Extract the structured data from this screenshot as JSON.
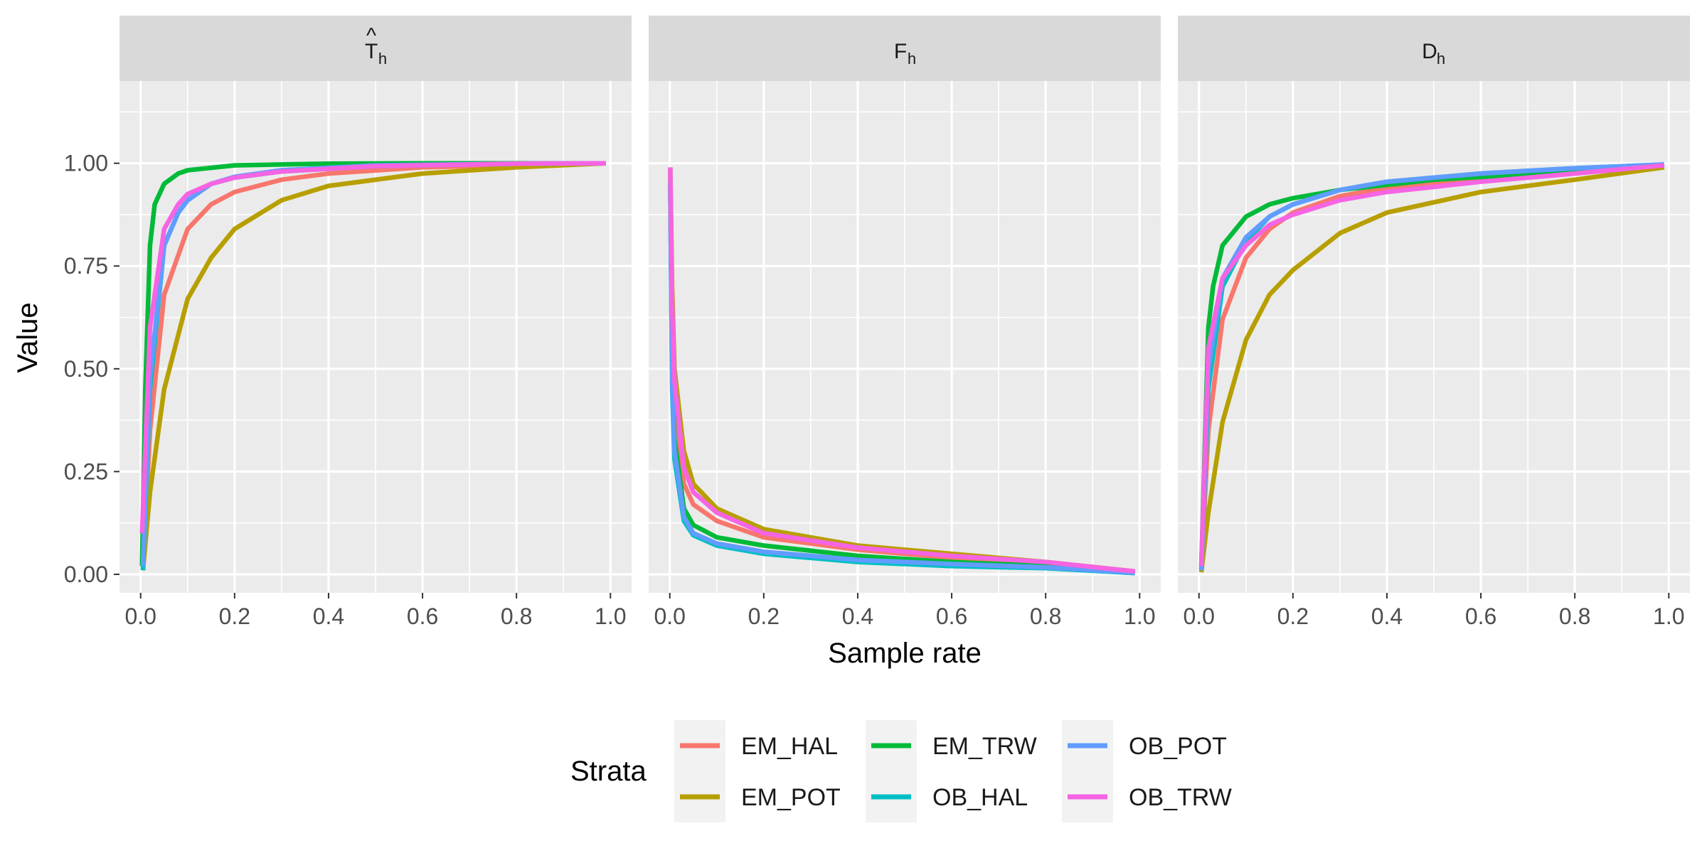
{
  "chart_data": {
    "type": "line",
    "xlabel": "Sample rate",
    "ylabel": "Value",
    "xlim": [
      0,
      1
    ],
    "ylim": [
      0,
      1
    ],
    "x_ticks": [
      "0.0",
      "0.2",
      "0.4",
      "0.6",
      "0.8",
      "1.0"
    ],
    "y_ticks": [
      "0.00",
      "0.25",
      "0.50",
      "0.75",
      "1.00"
    ],
    "grid": true,
    "legend": {
      "title": "Strata",
      "position": "bottom",
      "entries": [
        "EM_HAL",
        "EM_POT",
        "EM_TRW",
        "OB_HAL",
        "OB_POT",
        "OB_TRW"
      ]
    },
    "colors": {
      "EM_HAL": "#F8766D",
      "EM_POT": "#B79F00",
      "EM_TRW": "#00BA38",
      "OB_HAL": "#00BFC4",
      "OB_POT": "#619CFF",
      "OB_TRW": "#F564E3"
    },
    "panels": [
      {
        "strip_main": "T",
        "strip_accent": "^",
        "strip_sub": "h",
        "series": [
          {
            "name": "EM_HAL",
            "x": [
              0.005,
              0.02,
              0.05,
              0.1,
              0.15,
              0.2,
              0.3,
              0.4,
              0.6,
              0.8,
              0.99
            ],
            "y": [
              0.01,
              0.35,
              0.68,
              0.84,
              0.9,
              0.93,
              0.96,
              0.975,
              0.99,
              0.996,
              1.0
            ]
          },
          {
            "name": "EM_POT",
            "x": [
              0.005,
              0.02,
              0.05,
              0.1,
              0.15,
              0.2,
              0.3,
              0.4,
              0.6,
              0.8,
              0.99
            ],
            "y": [
              0.01,
              0.2,
              0.45,
              0.67,
              0.77,
              0.84,
              0.91,
              0.945,
              0.975,
              0.99,
              1.0
            ]
          },
          {
            "name": "EM_TRW",
            "x": [
              0.003,
              0.01,
              0.02,
              0.03,
              0.05,
              0.08,
              0.1,
              0.2,
              0.4,
              0.6,
              0.99
            ],
            "y": [
              0.02,
              0.45,
              0.8,
              0.9,
              0.95,
              0.975,
              0.983,
              0.995,
              0.999,
              1.0,
              1.0
            ]
          },
          {
            "name": "OB_HAL",
            "x": [
              0.005,
              0.02,
              0.05,
              0.08,
              0.1,
              0.15,
              0.2,
              0.3,
              0.5,
              0.8,
              0.99
            ],
            "y": [
              0.01,
              0.45,
              0.8,
              0.88,
              0.91,
              0.95,
              0.965,
              0.98,
              0.993,
              0.999,
              1.0
            ]
          },
          {
            "name": "OB_POT",
            "x": [
              0.005,
              0.02,
              0.05,
              0.08,
              0.1,
              0.15,
              0.2,
              0.3,
              0.5,
              0.8,
              0.99
            ],
            "y": [
              0.02,
              0.48,
              0.8,
              0.88,
              0.91,
              0.95,
              0.967,
              0.983,
              0.995,
              0.999,
              1.0
            ]
          },
          {
            "name": "OB_TRW",
            "x": [
              0.003,
              0.02,
              0.05,
              0.08,
              0.1,
              0.15,
              0.2,
              0.3,
              0.5,
              0.8,
              0.99
            ],
            "y": [
              0.1,
              0.6,
              0.84,
              0.9,
              0.925,
              0.95,
              0.965,
              0.98,
              0.993,
              0.999,
              1.0
            ]
          }
        ]
      },
      {
        "strip_main": "F",
        "strip_accent": "",
        "strip_sub": "h",
        "series": [
          {
            "name": "EM_HAL",
            "x": [
              0.001,
              0.005,
              0.01,
              0.03,
              0.05,
              0.1,
              0.2,
              0.4,
              0.6,
              0.8,
              0.99
            ],
            "y": [
              0.97,
              0.55,
              0.4,
              0.22,
              0.17,
              0.13,
              0.09,
              0.06,
              0.04,
              0.025,
              0.005
            ]
          },
          {
            "name": "EM_POT",
            "x": [
              0.001,
              0.005,
              0.01,
              0.03,
              0.05,
              0.1,
              0.2,
              0.4,
              0.6,
              0.8,
              0.99
            ],
            "y": [
              0.99,
              0.7,
              0.5,
              0.3,
              0.22,
              0.16,
              0.11,
              0.07,
              0.05,
              0.03,
              0.007
            ]
          },
          {
            "name": "EM_TRW",
            "x": [
              0.001,
              0.005,
              0.01,
              0.03,
              0.05,
              0.1,
              0.2,
              0.4,
              0.6,
              0.8,
              0.99
            ],
            "y": [
              0.95,
              0.5,
              0.33,
              0.16,
              0.12,
              0.09,
              0.07,
              0.045,
              0.03,
              0.02,
              0.005
            ]
          },
          {
            "name": "OB_HAL",
            "x": [
              0.001,
              0.005,
              0.01,
              0.03,
              0.05,
              0.1,
              0.2,
              0.4,
              0.6,
              0.8,
              0.99
            ],
            "y": [
              0.95,
              0.45,
              0.28,
              0.13,
              0.095,
              0.07,
              0.05,
              0.03,
              0.02,
              0.015,
              0.003
            ]
          },
          {
            "name": "OB_POT",
            "x": [
              0.001,
              0.005,
              0.01,
              0.03,
              0.05,
              0.1,
              0.2,
              0.4,
              0.6,
              0.8,
              0.99
            ],
            "y": [
              0.96,
              0.47,
              0.3,
              0.14,
              0.1,
              0.075,
              0.055,
              0.035,
              0.025,
              0.017,
              0.004
            ]
          },
          {
            "name": "OB_TRW",
            "x": [
              0.001,
              0.005,
              0.01,
              0.03,
              0.05,
              0.1,
              0.2,
              0.4,
              0.6,
              0.8,
              0.99
            ],
            "y": [
              0.99,
              0.65,
              0.47,
              0.26,
              0.2,
              0.15,
              0.1,
              0.065,
              0.045,
              0.03,
              0.007
            ]
          }
        ]
      },
      {
        "strip_main": "D",
        "strip_accent": "",
        "strip_sub": "h",
        "series": [
          {
            "name": "EM_HAL",
            "x": [
              0.005,
              0.02,
              0.05,
              0.1,
              0.15,
              0.2,
              0.3,
              0.4,
              0.6,
              0.8,
              0.99
            ],
            "y": [
              0.01,
              0.35,
              0.62,
              0.77,
              0.84,
              0.88,
              0.92,
              0.94,
              0.965,
              0.98,
              0.995
            ]
          },
          {
            "name": "EM_POT",
            "x": [
              0.005,
              0.02,
              0.05,
              0.1,
              0.15,
              0.2,
              0.3,
              0.4,
              0.6,
              0.8,
              0.99
            ],
            "y": [
              0.005,
              0.15,
              0.37,
              0.57,
              0.68,
              0.74,
              0.83,
              0.88,
              0.93,
              0.96,
              0.99
            ]
          },
          {
            "name": "EM_TRW",
            "x": [
              0.005,
              0.02,
              0.03,
              0.05,
              0.1,
              0.15,
              0.2,
              0.3,
              0.5,
              0.8,
              0.99
            ],
            "y": [
              0.02,
              0.6,
              0.7,
              0.8,
              0.87,
              0.9,
              0.915,
              0.935,
              0.96,
              0.98,
              0.995
            ]
          },
          {
            "name": "OB_HAL",
            "x": [
              0.005,
              0.02,
              0.05,
              0.1,
              0.15,
              0.2,
              0.3,
              0.4,
              0.6,
              0.8,
              0.99
            ],
            "y": [
              0.01,
              0.45,
              0.7,
              0.81,
              0.87,
              0.9,
              0.935,
              0.955,
              0.975,
              0.988,
              0.997
            ]
          },
          {
            "name": "OB_POT",
            "x": [
              0.005,
              0.02,
              0.05,
              0.1,
              0.15,
              0.2,
              0.3,
              0.4,
              0.6,
              0.8,
              0.99
            ],
            "y": [
              0.01,
              0.5,
              0.72,
              0.82,
              0.87,
              0.9,
              0.935,
              0.955,
              0.975,
              0.988,
              0.997
            ]
          },
          {
            "name": "OB_TRW",
            "x": [
              0.005,
              0.02,
              0.05,
              0.1,
              0.15,
              0.2,
              0.3,
              0.4,
              0.6,
              0.8,
              0.99
            ],
            "y": [
              0.02,
              0.55,
              0.72,
              0.8,
              0.85,
              0.875,
              0.91,
              0.93,
              0.955,
              0.975,
              0.995
            ]
          }
        ]
      }
    ]
  }
}
